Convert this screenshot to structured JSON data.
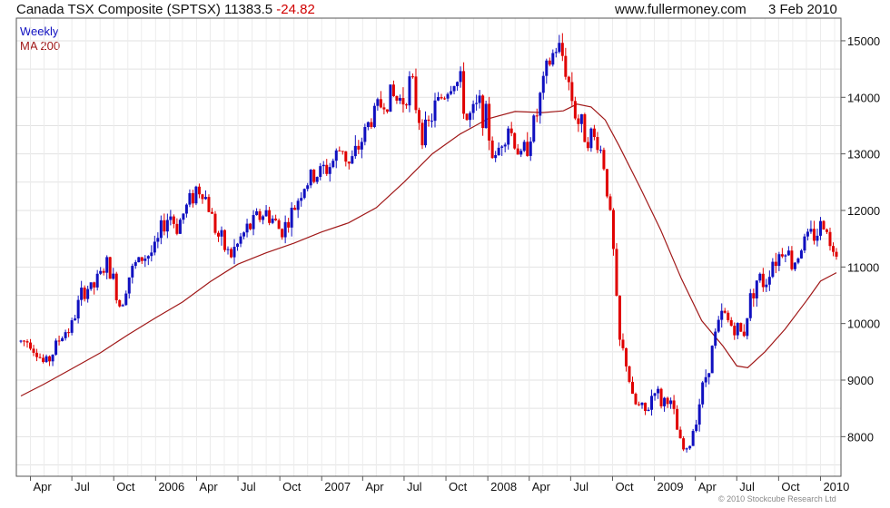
{
  "header": {
    "title_main": "Canada TSX Composite (SPTSX) 11383.5",
    "title_change": "-24.82",
    "site": "www.fullermoney.com",
    "date": "3 Feb 2010"
  },
  "copyright": "© 2010 Stockcube Research Ltd",
  "chart_data": {
    "type": "line",
    "title": "Canada TSX Composite (SPTSX) 11383.5 -24.82",
    "xlabel": "",
    "ylabel": "",
    "x_range": [
      "2005-03-11",
      "2010-02-05"
    ],
    "ylim": [
      7300,
      15400
    ],
    "grid": true,
    "legend_position": "top-left",
    "y_ticks": [
      8000,
      9000,
      10000,
      11000,
      12000,
      13000,
      14000,
      15000
    ],
    "x_ticks": [
      {
        "label": "Apr",
        "date": "2005-04-01"
      },
      {
        "label": "Jul",
        "date": "2005-07-01"
      },
      {
        "label": "Oct",
        "date": "2005-10-01"
      },
      {
        "label": "2006",
        "date": "2006-01-01"
      },
      {
        "label": "Apr",
        "date": "2006-04-01"
      },
      {
        "label": "Jul",
        "date": "2006-07-01"
      },
      {
        "label": "Oct",
        "date": "2006-10-01"
      },
      {
        "label": "2007",
        "date": "2007-01-01"
      },
      {
        "label": "Apr",
        "date": "2007-04-01"
      },
      {
        "label": "Jul",
        "date": "2007-07-01"
      },
      {
        "label": "Oct",
        "date": "2007-10-01"
      },
      {
        "label": "2008",
        "date": "2008-01-01"
      },
      {
        "label": "Apr",
        "date": "2008-04-01"
      },
      {
        "label": "Jul",
        "date": "2008-07-01"
      },
      {
        "label": "Oct",
        "date": "2008-10-01"
      },
      {
        "label": "2009",
        "date": "2009-01-01"
      },
      {
        "label": "Apr",
        "date": "2009-04-01"
      },
      {
        "label": "Jul",
        "date": "2009-07-01"
      },
      {
        "label": "Oct",
        "date": "2009-10-01"
      },
      {
        "label": "2010",
        "date": "2010-01-01"
      }
    ],
    "series": [
      {
        "name": "Weekly",
        "color": "#1010c0",
        "down_color": "#e00000",
        "points": [
          [
            "2005-03-11",
            9680
          ],
          [
            "2005-04-01",
            9700
          ],
          [
            "2005-04-15",
            9500
          ],
          [
            "2005-05-01",
            9280
          ],
          [
            "2005-05-15",
            9400
          ],
          [
            "2005-06-01",
            9700
          ],
          [
            "2005-06-15",
            9850
          ],
          [
            "2005-07-01",
            9960
          ],
          [
            "2005-07-15",
            10350
          ],
          [
            "2005-08-01",
            10650
          ],
          [
            "2005-08-15",
            10600
          ],
          [
            "2005-09-01",
            10850
          ],
          [
            "2005-09-15",
            11050
          ],
          [
            "2005-10-01",
            10750
          ],
          [
            "2005-10-15",
            10300
          ],
          [
            "2005-11-01",
            10800
          ],
          [
            "2005-11-15",
            11000
          ],
          [
            "2005-12-01",
            11150
          ],
          [
            "2006-01-01",
            11300
          ],
          [
            "2006-01-15",
            11700
          ],
          [
            "2006-02-01",
            11950
          ],
          [
            "2006-02-15",
            11700
          ],
          [
            "2006-03-01",
            11900
          ],
          [
            "2006-03-15",
            12150
          ],
          [
            "2006-04-01",
            12400
          ],
          [
            "2006-04-15",
            12350
          ],
          [
            "2006-05-01",
            12000
          ],
          [
            "2006-05-15",
            11600
          ],
          [
            "2006-06-01",
            11350
          ],
          [
            "2006-06-15",
            11200
          ],
          [
            "2006-07-01",
            11400
          ],
          [
            "2006-07-15",
            11600
          ],
          [
            "2006-08-01",
            11750
          ],
          [
            "2006-08-15",
            11900
          ],
          [
            "2006-09-01",
            11950
          ],
          [
            "2006-09-15",
            11850
          ],
          [
            "2006-10-01",
            11650
          ],
          [
            "2006-10-15",
            11750
          ],
          [
            "2006-11-01",
            12000
          ],
          [
            "2006-11-15",
            12350
          ],
          [
            "2006-12-01",
            12500
          ],
          [
            "2007-01-01",
            12700
          ],
          [
            "2007-01-15",
            12750
          ],
          [
            "2007-02-01",
            12950
          ],
          [
            "2007-02-15",
            13150
          ],
          [
            "2007-03-01",
            12800
          ],
          [
            "2007-03-15",
            12950
          ],
          [
            "2007-04-01",
            13300
          ],
          [
            "2007-04-15",
            13550
          ],
          [
            "2007-05-01",
            13800
          ],
          [
            "2007-05-15",
            13900
          ],
          [
            "2007-06-01",
            14050
          ],
          [
            "2007-06-15",
            13950
          ],
          [
            "2007-07-01",
            14000
          ],
          [
            "2007-07-15",
            14300
          ],
          [
            "2007-08-01",
            13700
          ],
          [
            "2007-08-15",
            13300
          ],
          [
            "2007-09-01",
            13700
          ],
          [
            "2007-09-15",
            13950
          ],
          [
            "2007-10-01",
            14100
          ],
          [
            "2007-10-15",
            14300
          ],
          [
            "2007-11-01",
            14250
          ],
          [
            "2007-11-15",
            13600
          ],
          [
            "2007-12-01",
            13700
          ],
          [
            "2007-12-15",
            13900
          ],
          [
            "2008-01-01",
            13500
          ],
          [
            "2008-01-15",
            12800
          ],
          [
            "2008-02-01",
            13300
          ],
          [
            "2008-02-15",
            13500
          ],
          [
            "2008-03-01",
            13200
          ],
          [
            "2008-03-15",
            12900
          ],
          [
            "2008-04-01",
            13300
          ],
          [
            "2008-04-15",
            13600
          ],
          [
            "2008-05-01",
            14200
          ],
          [
            "2008-05-15",
            14600
          ],
          [
            "2008-06-01",
            14900
          ],
          [
            "2008-06-15",
            14700
          ],
          [
            "2008-07-01",
            14100
          ],
          [
            "2008-07-15",
            13600
          ],
          [
            "2008-08-01",
            13400
          ],
          [
            "2008-08-15",
            13300
          ],
          [
            "2008-09-01",
            13200
          ],
          [
            "2008-09-15",
            12700
          ],
          [
            "2008-10-01",
            11500
          ],
          [
            "2008-10-15",
            9700
          ],
          [
            "2008-11-01",
            9300
          ],
          [
            "2008-11-15",
            8600
          ],
          [
            "2008-12-01",
            8500
          ],
          [
            "2008-12-15",
            8400
          ],
          [
            "2009-01-01",
            8900
          ],
          [
            "2009-01-15",
            8600
          ],
          [
            "2009-02-01",
            8700
          ],
          [
            "2009-02-15",
            8300
          ],
          [
            "2009-03-01",
            7800
          ],
          [
            "2009-03-15",
            7700
          ],
          [
            "2009-04-01",
            8300
          ],
          [
            "2009-04-15",
            8800
          ],
          [
            "2009-05-01",
            9300
          ],
          [
            "2009-05-15",
            9800
          ],
          [
            "2009-06-01",
            10200
          ],
          [
            "2009-06-15",
            10000
          ],
          [
            "2009-07-01",
            9900
          ],
          [
            "2009-07-15",
            9800
          ],
          [
            "2009-08-01",
            10500
          ],
          [
            "2009-08-15",
            10800
          ],
          [
            "2009-09-01",
            10700
          ],
          [
            "2009-09-15",
            11100
          ],
          [
            "2009-10-01",
            11200
          ],
          [
            "2009-10-15",
            11400
          ],
          [
            "2009-11-01",
            11000
          ],
          [
            "2009-11-15",
            11300
          ],
          [
            "2009-12-01",
            11500
          ],
          [
            "2009-12-15",
            11550
          ],
          [
            "2010-01-01",
            11700
          ],
          [
            "2010-01-15",
            11800
          ],
          [
            "2010-01-22",
            11300
          ],
          [
            "2010-02-05",
            11383.5
          ]
        ]
      },
      {
        "name": "MA 200",
        "color": "#a01818",
        "points": [
          [
            "2005-03-11",
            8720
          ],
          [
            "2005-05-01",
            8930
          ],
          [
            "2005-07-01",
            9200
          ],
          [
            "2005-09-01",
            9480
          ],
          [
            "2005-11-01",
            9800
          ],
          [
            "2006-01-01",
            10100
          ],
          [
            "2006-03-01",
            10380
          ],
          [
            "2006-05-01",
            10740
          ],
          [
            "2006-07-01",
            11050
          ],
          [
            "2006-09-01",
            11250
          ],
          [
            "2006-11-01",
            11420
          ],
          [
            "2007-01-01",
            11620
          ],
          [
            "2007-03-01",
            11780
          ],
          [
            "2007-05-01",
            12050
          ],
          [
            "2007-07-01",
            12500
          ],
          [
            "2007-09-01",
            13000
          ],
          [
            "2007-11-01",
            13350
          ],
          [
            "2008-01-01",
            13620
          ],
          [
            "2008-03-01",
            13750
          ],
          [
            "2008-05-01",
            13730
          ],
          [
            "2008-06-15",
            13760
          ],
          [
            "2008-07-15",
            13880
          ],
          [
            "2008-08-15",
            13830
          ],
          [
            "2008-09-15",
            13600
          ],
          [
            "2008-10-15",
            13150
          ],
          [
            "2008-12-01",
            12400
          ],
          [
            "2009-01-15",
            11650
          ],
          [
            "2009-03-01",
            10800
          ],
          [
            "2009-04-15",
            10050
          ],
          [
            "2009-06-01",
            9600
          ],
          [
            "2009-07-01",
            9250
          ],
          [
            "2009-07-25",
            9220
          ],
          [
            "2009-09-01",
            9500
          ],
          [
            "2009-10-15",
            9900
          ],
          [
            "2009-12-01",
            10400
          ],
          [
            "2010-01-01",
            10750
          ],
          [
            "2010-02-05",
            10900
          ]
        ]
      }
    ]
  }
}
